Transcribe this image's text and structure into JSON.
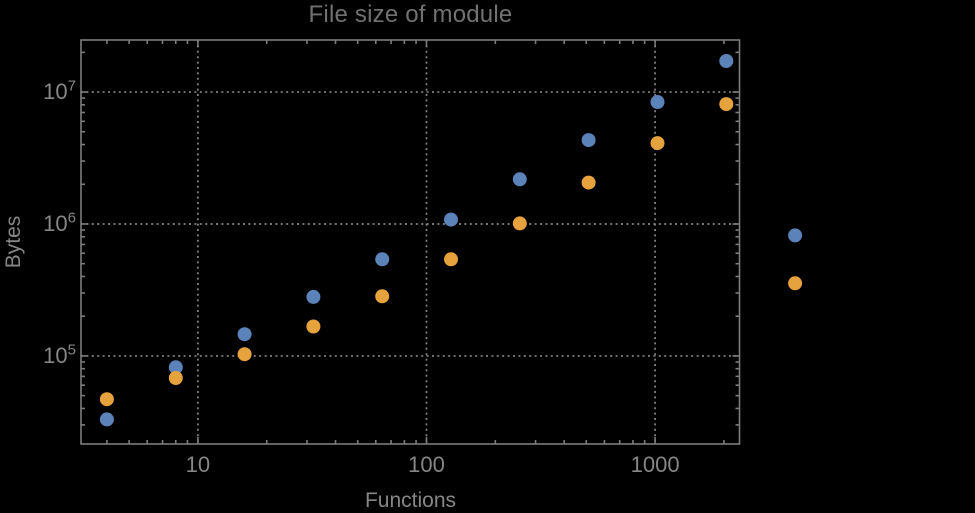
{
  "chart_data": {
    "type": "scatter",
    "title": "File size of module",
    "xlabel": "Functions",
    "ylabel": "Bytes",
    "x_scale": "log",
    "y_scale": "log",
    "xlim": [
      3.08,
      2340
    ],
    "ylim": [
      21500,
      24800000
    ],
    "legend": "none",
    "grid": {
      "style": "dotted",
      "x_values": [
        10,
        100,
        1000
      ],
      "y_values": [
        100000,
        1000000,
        10000000
      ]
    },
    "x": [
      4,
      8,
      16,
      32,
      64,
      128,
      256,
      512,
      1024,
      2048,
      4096
    ],
    "series": [
      {
        "name": "blue-series",
        "color": "#5C82BA",
        "values": [
          33000,
          82000,
          146000,
          280000,
          540000,
          1080000,
          2180000,
          4320000,
          8400000,
          17200000,
          820000
        ]
      },
      {
        "name": "orange-series",
        "color": "#E6A23C",
        "values": [
          47000,
          68000,
          103000,
          167000,
          283000,
          540000,
          1010000,
          2060000,
          4100000,
          8100000,
          355000
        ]
      }
    ],
    "x_ticks": [
      {
        "value": 10,
        "label": "10"
      },
      {
        "value": 100,
        "label": "100"
      },
      {
        "value": 1000,
        "label": "1000"
      }
    ],
    "y_ticks": [
      {
        "value": 100000,
        "base": "10",
        "exp": "5"
      },
      {
        "value": 1000000,
        "base": "10",
        "exp": "6"
      },
      {
        "value": 10000000,
        "base": "10",
        "exp": "7"
      }
    ]
  },
  "colors": {
    "background": "#000000",
    "frame": "#7c7c7c",
    "grid": "#868686",
    "text": "#868686",
    "title": "#717171"
  }
}
